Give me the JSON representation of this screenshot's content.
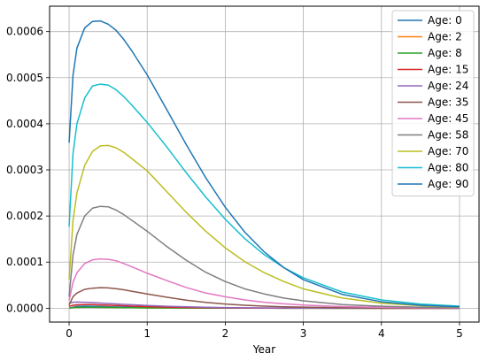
{
  "chart_data": {
    "type": "line",
    "title": "",
    "xlabel": "Year",
    "ylabel": "",
    "xlim": [
      -0.25,
      5.25
    ],
    "ylim": [
      -3e-05,
      0.000655
    ],
    "x_ticks": [
      0,
      1,
      2,
      3,
      4,
      5
    ],
    "x_tick_labels": [
      "0",
      "1",
      "2",
      "3",
      "4",
      "5"
    ],
    "y_ticks": [
      0,
      0.0001,
      0.0002,
      0.0003,
      0.0004,
      0.0005,
      0.0006
    ],
    "y_tick_labels": [
      "0.0000",
      "0.0001",
      "0.0002",
      "0.0003",
      "0.0004",
      "0.0005",
      "0.0006"
    ],
    "grid": true,
    "legend_position": "top-right",
    "x": [
      0,
      0.05,
      0.1,
      0.2,
      0.3,
      0.4,
      0.5,
      0.6,
      0.7,
      0.8,
      1,
      1.25,
      1.5,
      1.75,
      2,
      2.25,
      2.5,
      2.75,
      3,
      3.5,
      4,
      4.5,
      5
    ],
    "series": [
      {
        "name": "Age: 0",
        "color": "#1f77b4",
        "values": [
          1e-07,
          2.5e-06,
          4e-06,
          4.5e-06,
          4.2e-06,
          3.8e-06,
          3.3e-06,
          2.9e-06,
          2.5e-06,
          2.2e-06,
          1.6e-06,
          1.1e-06,
          7e-07,
          5e-07,
          3e-07,
          2e-07,
          2e-07,
          1e-07,
          1e-07,
          5e-08,
          3e-08,
          1e-08,
          1e-08
        ]
      },
      {
        "name": "Age: 2",
        "color": "#ff7f0e",
        "values": [
          1e-07,
          1.5e-06,
          2e-06,
          2.2e-06,
          2.1e-06,
          1.9e-06,
          1.7e-06,
          1.5e-06,
          1.3e-06,
          1.1e-06,
          8e-07,
          6e-07,
          4e-07,
          3e-07,
          2e-07,
          1e-07,
          1e-07,
          5e-08,
          4e-08,
          2e-08,
          1e-08,
          1e-08,
          0.0
        ]
      },
      {
        "name": "Age: 8",
        "color": "#2ca02c",
        "values": [
          1e-07,
          1.5e-06,
          2e-06,
          2.2e-06,
          2.1e-06,
          1.9e-06,
          1.7e-06,
          1.5e-06,
          1.3e-06,
          1.1e-06,
          8e-07,
          6e-07,
          4e-07,
          3e-07,
          2e-07,
          1e-07,
          1e-07,
          5e-08,
          4e-08,
          2e-08,
          1e-08,
          1e-08,
          0.0
        ]
      },
      {
        "name": "Age: 15",
        "color": "#d62728",
        "values": [
          4e-06,
          6.5e-06,
          7.5e-06,
          8e-06,
          7.8e-06,
          7.2e-06,
          6.6e-06,
          5.9e-06,
          5.2e-06,
          4.6e-06,
          3.5e-06,
          2.4e-06,
          1.7e-06,
          1.1e-06,
          8e-07,
          5e-07,
          4e-07,
          3e-07,
          2e-07,
          1e-07,
          5e-08,
          2e-08,
          1e-08
        ]
      },
      {
        "name": "Age: 24",
        "color": "#9467bd",
        "values": [
          1.1e-05,
          1.3e-05,
          1.35e-05,
          1.3e-05,
          1.22e-05,
          1.13e-05,
          1.04e-05,
          9.4e-06,
          8.5e-06,
          7.6e-06,
          5.9e-06,
          4.2e-06,
          3e-06,
          2.1e-06,
          1.4e-06,
          1e-06,
          7e-07,
          5e-07,
          3e-07,
          2e-07,
          1e-07,
          5e-08,
          3e-08
        ]
      },
      {
        "name": "Age: 35",
        "color": "#8c564b",
        "values": [
          7e-06,
          2.5e-05,
          3.3e-05,
          4.1e-05,
          4.35e-05,
          4.45e-05,
          4.4e-05,
          4.25e-05,
          4e-05,
          3.7e-05,
          3.1e-05,
          2.4e-05,
          1.75e-05,
          1.27e-05,
          9.2e-06,
          6.5e-06,
          4.6e-06,
          3.2e-06,
          2.3e-06,
          1.1e-06,
          5e-07,
          2e-07,
          1e-07
        ]
      },
      {
        "name": "Age: 45",
        "color": "#e377c2",
        "values": [
          1.7e-05,
          5.6e-05,
          7.7e-05,
          9.7e-05,
          0.000105,
          0.000107,
          0.000106,
          0.000103,
          9.7e-05,
          9e-05,
          7.6e-05,
          6e-05,
          4.5e-05,
          3.3e-05,
          2.5e-05,
          1.8e-05,
          1.3e-05,
          9.5e-06,
          7e-06,
          3.5e-06,
          1.8e-06,
          9e-07,
          5e-07
        ]
      },
      {
        "name": "Age: 58",
        "color": "#7f7f7f",
        "values": [
          2.5e-05,
          0.000115,
          0.00016,
          0.0002,
          0.000217,
          0.000221,
          0.00022,
          0.000213,
          0.000203,
          0.000191,
          0.000167,
          0.000134,
          0.000104,
          7.8e-05,
          5.8e-05,
          4.2e-05,
          3.1e-05,
          2.2e-05,
          1.6e-05,
          8e-06,
          4.2e-06,
          2.2e-06,
          1.2e-06
        ]
      },
      {
        "name": "Age: 70",
        "color": "#bcbd22",
        "values": [
          6.2e-05,
          0.00019,
          0.00025,
          0.00031,
          0.00034,
          0.000352,
          0.000353,
          0.000348,
          0.000338,
          0.000325,
          0.000298,
          0.000253,
          0.000208,
          0.000167,
          0.000131,
          0.000101,
          7.7e-05,
          5.8e-05,
          4.2e-05,
          2.2e-05,
          1.1e-05,
          5.5e-06,
          2.7e-06
        ]
      },
      {
        "name": "Age: 80",
        "color": "#17becf",
        "values": [
          0.000177,
          0.000335,
          0.0004,
          0.000456,
          0.000482,
          0.000486,
          0.000484,
          0.000474,
          0.000459,
          0.000441,
          0.000403,
          0.00035,
          0.000294,
          0.000241,
          0.000193,
          0.000151,
          0.000116,
          8.8e-05,
          6.6e-05,
          3.5e-05,
          1.8e-05,
          9e-06,
          4.5e-06
        ]
      },
      {
        "name": "Age: 90",
        "color": "#1f77b4",
        "values": [
          0.000359,
          0.000505,
          0.000564,
          0.000608,
          0.000622,
          0.000623,
          0.000616,
          0.000603,
          0.000583,
          0.000559,
          0.000506,
          0.000431,
          0.000355,
          0.000283,
          0.000219,
          0.000165,
          0.000122,
          8.8e-05,
          6.2e-05,
          3e-05,
          1.4e-05,
          6.5e-06,
          3e-06
        ]
      }
    ]
  }
}
